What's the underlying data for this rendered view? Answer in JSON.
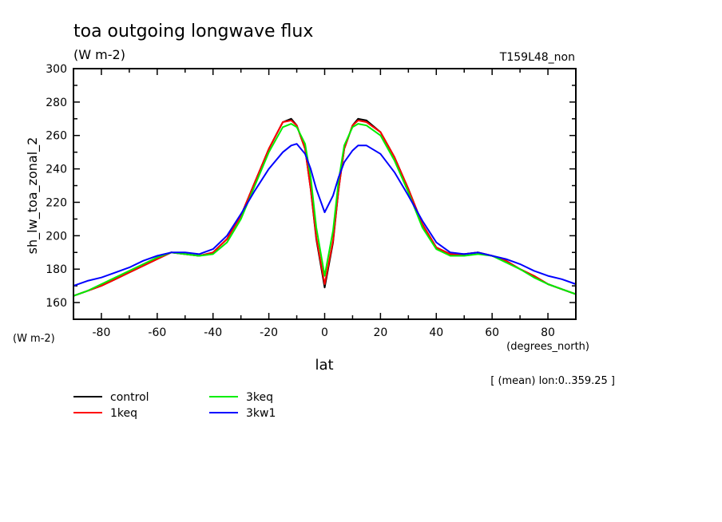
{
  "chart_data": {
    "type": "line",
    "title": "toa outgoing longwave flux",
    "units": "(W m-2)",
    "run_label": "T159L48_non",
    "ylabel": "sh_lw_toa_zonal_2",
    "y_units": "(W m-2)",
    "xlabel": "lat",
    "x_units": "(degrees_north)",
    "note": "[ (mean) lon:0..359.25 ]",
    "xlim": [
      -90,
      90
    ],
    "ylim": [
      150,
      300
    ],
    "xticks": [
      -80,
      -60,
      -40,
      -20,
      0,
      20,
      40,
      60,
      80
    ],
    "yticks": [
      160,
      180,
      200,
      220,
      240,
      260,
      280,
      300
    ],
    "grid": false,
    "legend_position": "bottom-left",
    "x": [
      -90,
      -85,
      -80,
      -75,
      -70,
      -65,
      -60,
      -55,
      -50,
      -45,
      -40,
      -35,
      -30,
      -25,
      -20,
      -15,
      -12,
      -10,
      -7,
      -5,
      -3,
      0,
      3,
      5,
      7,
      10,
      12,
      15,
      20,
      25,
      30,
      35,
      40,
      45,
      50,
      55,
      60,
      65,
      70,
      75,
      80,
      85,
      90
    ],
    "series": [
      {
        "name": "control",
        "color": "#000000",
        "values": [
          164,
          167,
          170,
          174,
          178,
          182,
          186,
          190,
          189,
          188,
          190,
          198,
          212,
          232,
          252,
          268,
          270,
          266,
          252,
          228,
          198,
          169,
          196,
          228,
          252,
          266,
          270,
          269,
          262,
          247,
          228,
          207,
          193,
          189,
          189,
          190,
          188,
          185,
          180,
          176,
          171,
          168,
          165
        ]
      },
      {
        "name": "1keq",
        "color": "#ff0000",
        "values": [
          164,
          167,
          170,
          174,
          178,
          182,
          186,
          190,
          189,
          188,
          190,
          198,
          212,
          232,
          252,
          268,
          269,
          266,
          252,
          228,
          199,
          171,
          197,
          228,
          252,
          266,
          269,
          268,
          262,
          247,
          228,
          207,
          193,
          189,
          189,
          190,
          188,
          185,
          180,
          176,
          171,
          168,
          165
        ]
      },
      {
        "name": "3keq",
        "color": "#00ee00",
        "values": [
          164,
          167,
          171,
          175,
          179,
          183,
          187,
          190,
          189,
          188,
          189,
          196,
          210,
          230,
          250,
          265,
          267,
          265,
          255,
          235,
          205,
          176,
          203,
          233,
          254,
          265,
          267,
          266,
          260,
          245,
          226,
          205,
          192,
          188,
          188,
          189,
          188,
          184,
          180,
          175,
          171,
          168,
          165
        ]
      },
      {
        "name": "3kw1",
        "color": "#0000ff",
        "values": [
          170,
          173,
          175,
          178,
          181,
          185,
          188,
          190,
          190,
          189,
          192,
          200,
          213,
          227,
          240,
          250,
          254,
          255,
          249,
          240,
          228,
          214,
          224,
          235,
          244,
          251,
          254,
          254,
          249,
          238,
          224,
          209,
          196,
          190,
          189,
          190,
          188,
          186,
          183,
          179,
          176,
          174,
          171
        ]
      }
    ]
  }
}
